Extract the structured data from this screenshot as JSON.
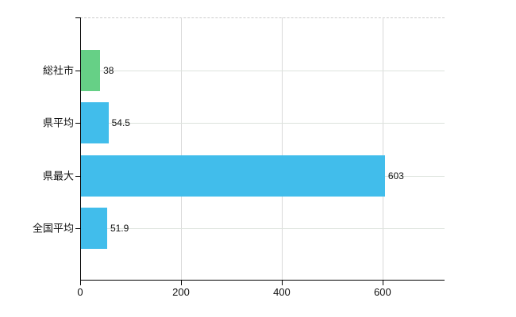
{
  "chart_data": {
    "type": "bar",
    "orientation": "horizontal",
    "title": "",
    "xlabel": "",
    "ylabel": "",
    "categories": [
      "総社市",
      "県平均",
      "県最大",
      "全国平均"
    ],
    "values": [
      38,
      54.5,
      603,
      51.9
    ],
    "value_labels": [
      "38",
      "54.5",
      "603",
      "51.9"
    ],
    "bar_colors": [
      "#66d086",
      "#41bdeb",
      "#41bdeb",
      "#41bdeb"
    ],
    "x_ticks": [
      0,
      200,
      400,
      600
    ],
    "x_tick_labels": [
      "0",
      "200",
      "400",
      "600"
    ],
    "xlim": [
      0,
      723
    ],
    "grid": true,
    "legend": false
  },
  "colors": {
    "background": "#ffffff",
    "axis": "#000000",
    "vertical_grid": "#d9d9d9",
    "row_grid": "#dde3dd",
    "plot_top_border": "#cccccc",
    "text": "#111111",
    "bar_green": "#66d086",
    "bar_blue": "#41bdeb"
  }
}
